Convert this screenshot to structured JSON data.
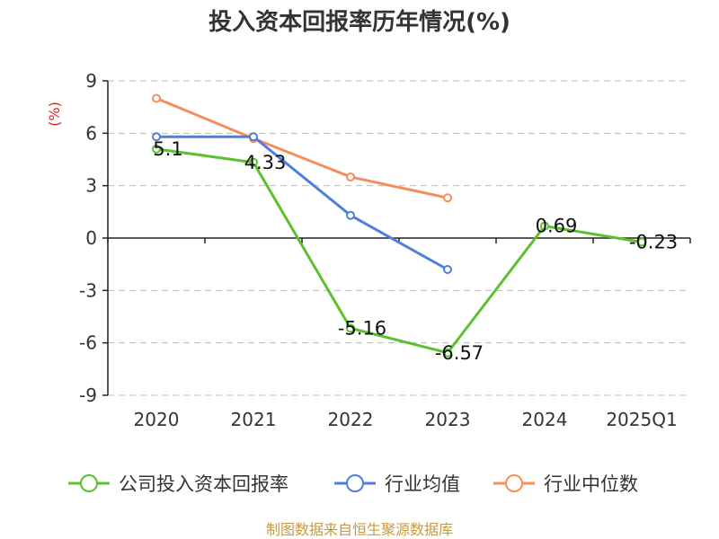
{
  "chart_data": {
    "type": "line",
    "title": "投入资本回报率历年情况(%)",
    "ylabel": "(%)",
    "categories": [
      "2020",
      "2021",
      "2022",
      "2023",
      "2024",
      "2025Q1"
    ],
    "ylim": [
      -9,
      9
    ],
    "yticks": [
      9,
      6,
      3,
      0,
      -3,
      -6,
      -9
    ],
    "grid": true,
    "legend_position": "bottom",
    "series": [
      {
        "name": "公司投入资本回报率",
        "color": "#5cc02f",
        "values": [
          5.1,
          4.33,
          -5.16,
          -6.57,
          0.69,
          -0.23
        ],
        "labels": [
          "5.1",
          "4.33",
          "-5.16",
          "-6.57",
          "0.69",
          "-0.23"
        ]
      },
      {
        "name": "行业均值",
        "color": "#4f7fdc",
        "values": [
          5.8,
          5.8,
          1.3,
          -1.8,
          null,
          null
        ]
      },
      {
        "name": "行业中位数",
        "color": "#f58e5a",
        "values": [
          8.0,
          5.7,
          3.5,
          2.3,
          null,
          null
        ]
      }
    ],
    "source": "制图数据来自恒生聚源数据库"
  }
}
